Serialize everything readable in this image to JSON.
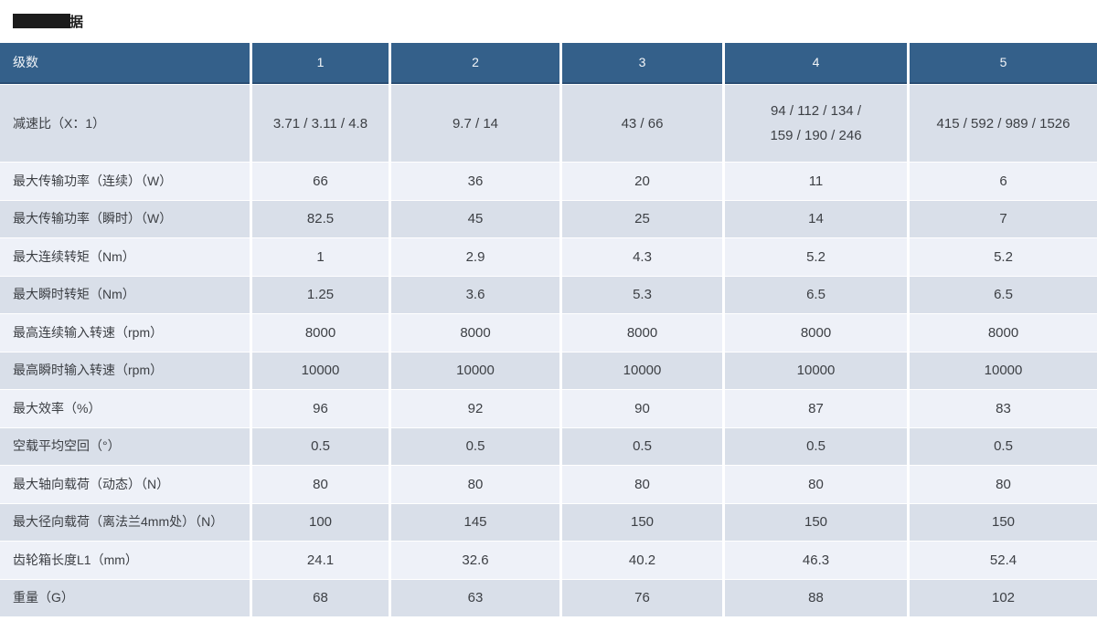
{
  "page": {
    "title_visible_text": "据"
  },
  "table": {
    "header": [
      "级数",
      "1",
      "2",
      "3",
      "4",
      "5"
    ],
    "rows": [
      {
        "label": "减速比（X：1）",
        "values": [
          "3.71 / 3.11 / 4.8",
          "9.7 / 14",
          "43 / 66",
          "94 / 112 / 134 /\n159 / 190 / 246",
          "415 / 592 / 989 / 1526"
        ]
      },
      {
        "label": "最大传输功率（连续）（W）",
        "values": [
          "66",
          "36",
          "20",
          "11",
          "6"
        ]
      },
      {
        "label": "最大传输功率（瞬时）（W）",
        "values": [
          "82.5",
          "45",
          "25",
          "14",
          "7"
        ]
      },
      {
        "label": "最大连续转矩（Nm）",
        "values": [
          "1",
          "2.9",
          "4.3",
          "5.2",
          "5.2"
        ]
      },
      {
        "label": "最大瞬时转矩（Nm）",
        "values": [
          "1.25",
          "3.6",
          "5.3",
          "6.5",
          "6.5"
        ]
      },
      {
        "label": "最高连续输入转速（rpm）",
        "values": [
          "8000",
          "8000",
          "8000",
          "8000",
          "8000"
        ]
      },
      {
        "label": "最高瞬时输入转速（rpm）",
        "values": [
          "10000",
          "10000",
          "10000",
          "10000",
          "10000"
        ]
      },
      {
        "label": "最大效率（%）",
        "values": [
          "96",
          "92",
          "90",
          "87",
          "83"
        ]
      },
      {
        "label": "空载平均空回（°）",
        "values": [
          "0.5",
          "0.5",
          "0.5",
          "0.5",
          "0.5"
        ]
      },
      {
        "label": "最大轴向载荷（动态）（N）",
        "values": [
          "80",
          "80",
          "80",
          "80",
          "80"
        ]
      },
      {
        "label": "最大径向载荷（离法兰4mm处）（N）",
        "values": [
          "100",
          "145",
          "150",
          "150",
          "150"
        ]
      },
      {
        "label": "齿轮箱长度L1（mm）",
        "values": [
          "24.1",
          "32.6",
          "40.2",
          "46.3",
          "52.4"
        ]
      },
      {
        "label": "重量（G）",
        "values": [
          "68",
          "63",
          "76",
          "88",
          "102"
        ]
      }
    ]
  },
  "colors": {
    "header_bg": "#34608A",
    "header_border": "#2A4E74",
    "row_light": "#EEF1F8",
    "row_dark": "#D9DFE9",
    "header_text": "#F2F5F8",
    "body_text": "#3C3F44",
    "title_text": "#1A1A1A",
    "redaction": "#1C1C1C"
  }
}
